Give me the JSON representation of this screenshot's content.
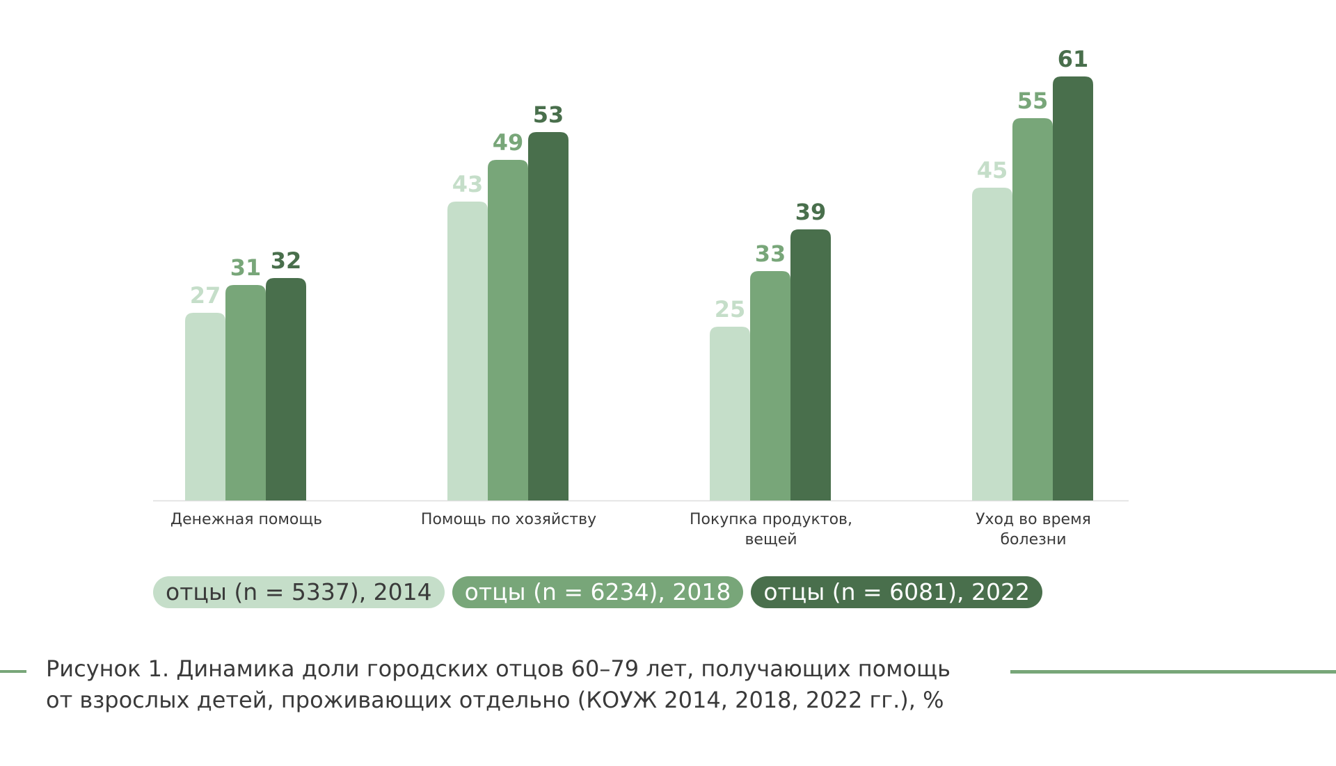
{
  "chart_data": {
    "type": "bar",
    "categories": [
      [
        "Денежная помощь"
      ],
      [
        "Помощь по хозяйству"
      ],
      [
        "Покупка продуктов,",
        "вещей"
      ],
      [
        "Уход во время",
        "болезни"
      ]
    ],
    "series": [
      {
        "name": "отцы (n = 5337), 2014",
        "values": [
          27,
          43,
          25,
          45
        ],
        "color": "#c5dec9"
      },
      {
        "name": "отцы (n = 6234), 2018",
        "values": [
          31,
          49,
          33,
          55
        ],
        "color": "#78a679"
      },
      {
        "name": "отцы (n = 6081), 2022",
        "values": [
          32,
          53,
          39,
          61
        ],
        "color": "#496f4c"
      }
    ],
    "ylim": [
      0,
      61
    ],
    "grid": false,
    "legend_position": "bottom"
  },
  "legend": [
    {
      "label": "отцы (n = 5337), 2014",
      "bg": "#c5dec9",
      "fg": "#3a3a3a"
    },
    {
      "label": "отцы (n = 6234), 2018",
      "bg": "#78a679",
      "fg": "#ffffff"
    },
    {
      "label": "отцы (n = 6081), 2022",
      "bg": "#496f4c",
      "fg": "#ffffff"
    }
  ],
  "caption": {
    "line1": "Рисунок 1. Динамика доли городских отцов 60–79 лет, получающих помощь",
    "line2": "от взрослых детей, проживающих отдельно (КОУЖ 2014, 2018, 2022 гг.), %"
  },
  "colors": {
    "rule": "#78a679",
    "axis": "#dddddd",
    "category_text": "#3a3a3a"
  }
}
